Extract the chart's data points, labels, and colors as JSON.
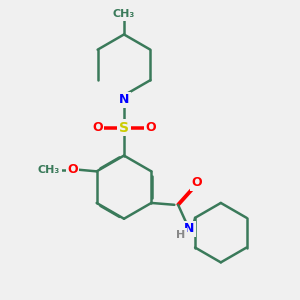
{
  "bg_color": "#f0f0f0",
  "bond_color": "#3a7a5a",
  "bond_width": 1.8,
  "atom_colors": {
    "N": "#0000ff",
    "O": "#ff0000",
    "S": "#cccc00",
    "C": "#3a7a5a",
    "H": "#888888"
  },
  "font_size": 9,
  "font_size_small": 8
}
